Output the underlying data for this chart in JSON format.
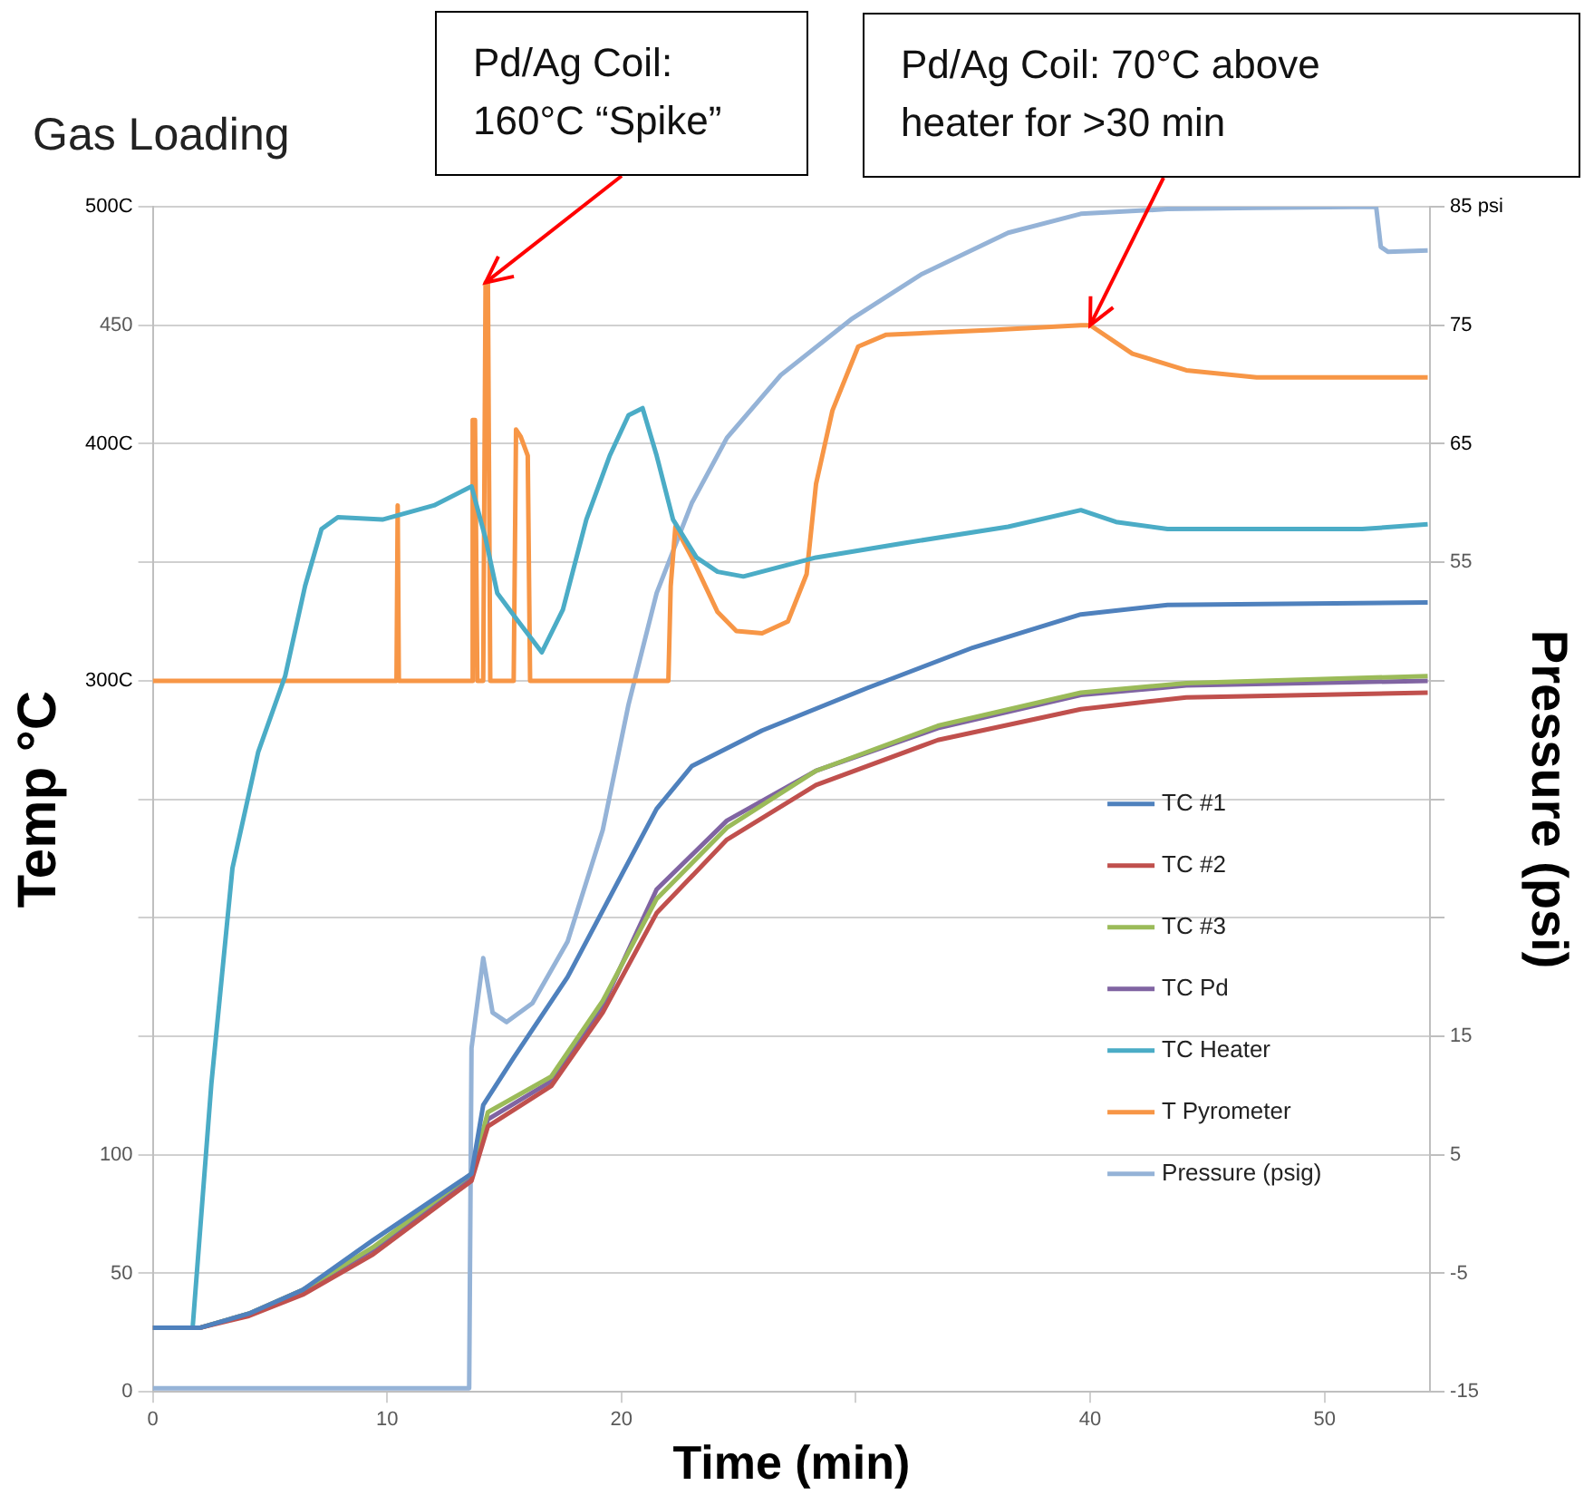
{
  "chart_data": {
    "type": "line",
    "title": "Gas Loading",
    "xlabel": "Time (min)",
    "ylabel": "Temp °C",
    "y2label": "Pressure (psi)",
    "xlim": [
      0,
      54.5
    ],
    "xticks": [
      0,
      10,
      20,
      {
        "value": 30,
        "label": null
      },
      40,
      50
    ],
    "ylim": [
      0,
      500
    ],
    "yticks": [
      0,
      50,
      100,
      {
        "value": 150,
        "label": null
      },
      {
        "value": 200,
        "label": null
      },
      {
        "value": 250,
        "label": null
      },
      {
        "value": 300,
        "label": "300C"
      },
      {
        "value": 350,
        "label": null
      },
      {
        "value": 400,
        "label": "400C"
      },
      450,
      {
        "value": 500,
        "label": "500C"
      }
    ],
    "y2lim": [
      -15,
      85
    ],
    "y2ticks": [
      -15,
      -5,
      5,
      15,
      {
        "value": 25,
        "label": null
      },
      {
        "value": 35,
        "label": null
      },
      {
        "value": 45,
        "label": null
      },
      55,
      {
        "value": 65,
        "label": "65"
      },
      {
        "value": 75,
        "label": "75"
      },
      {
        "value": 85,
        "label": "85 psi"
      }
    ],
    "grid": "y",
    "legend": "right",
    "marker": "none",
    "line_style": "solid",
    "series": [
      {
        "name": "TC #1",
        "color": "#4f81bd",
        "x": [
          0,
          2,
          4.1,
          6.4,
          9.4,
          13.6,
          14.1,
          15.4,
          17.7,
          20,
          21.5,
          23,
          26,
          30.5,
          35,
          39.6,
          43.3,
          54.4
        ],
        "values": [
          27,
          27,
          33,
          43,
          64,
          92,
          121,
          141,
          175,
          218,
          246,
          264,
          279,
          297,
          314,
          328,
          332,
          333
        ]
      },
      {
        "name": "TC #2",
        "color": "#c0504d",
        "x": [
          0,
          2,
          4.1,
          6.4,
          9.4,
          13.6,
          14.3,
          17,
          19.2,
          21.5,
          24.5,
          28.3,
          33.5,
          39.6,
          44.1,
          54.4
        ],
        "values": [
          27,
          27,
          32,
          41,
          58,
          89,
          112,
          129,
          160,
          202,
          233,
          256,
          275,
          288,
          293,
          295
        ]
      },
      {
        "name": "TC #3",
        "color": "#9bbb59",
        "x": [
          0,
          2,
          4.1,
          6.4,
          9.4,
          13.6,
          14.3,
          17,
          19.2,
          21.5,
          24.5,
          28.3,
          33.5,
          39.6,
          44.1,
          54.4
        ],
        "values": [
          27,
          27,
          33,
          43,
          61,
          92,
          118,
          133,
          165,
          208,
          238,
          262,
          281,
          295,
          299,
          302
        ]
      },
      {
        "name": "TC Pd",
        "color": "#8064a2",
        "x": [
          0,
          2,
          4.1,
          6.4,
          9.4,
          13.6,
          14.3,
          17,
          19.2,
          21.5,
          24.5,
          28.3,
          33.5,
          39.6,
          44.1,
          54.4
        ],
        "values": [
          27,
          27,
          33,
          43,
          60,
          91,
          115,
          131,
          163,
          212,
          241,
          262,
          280,
          294,
          298,
          300
        ]
      },
      {
        "name": "TC Heater",
        "color": "#4bacc6",
        "x": [
          0,
          1.7,
          2.5,
          3.4,
          4.5,
          5.65,
          6.5,
          7.2,
          7.9,
          9.8,
          12,
          13.6,
          14.2,
          14.7,
          15.6,
          16.6,
          17.5,
          18.5,
          19.5,
          20.3,
          20.9,
          21.5,
          22.2,
          23.2,
          24.1,
          25.2,
          28.3,
          32,
          36.5,
          39.6,
          41.1,
          43.3,
          47.1,
          51.6,
          54.4
        ],
        "values": [
          27,
          27,
          130,
          221,
          270,
          302,
          340,
          364,
          369,
          368,
          374,
          382,
          360,
          337,
          325,
          312,
          330,
          368,
          395,
          412,
          415,
          395,
          368,
          352,
          346,
          344,
          352,
          358,
          365,
          372,
          367,
          364,
          364,
          364,
          366
        ]
      },
      {
        "name": "T Pyrometer",
        "color": "#f79646",
        "x": [
          0,
          10.4,
          10.45,
          10.5,
          13.6,
          13.65,
          13.75,
          13.85,
          14.1,
          14.2,
          14.3,
          14.4,
          14.5,
          15.4,
          15.5,
          15.7,
          16.0,
          16.1,
          16.2,
          22.0,
          22.1,
          22.3,
          23,
          24.1,
          24.9,
          26,
          27.1,
          27.9,
          28.3,
          29,
          30.1,
          31.3,
          35.8,
          39.6,
          40,
          41.8,
          44.1,
          47.1,
          54.4
        ],
        "values": [
          300,
          300,
          374,
          300,
          300,
          410,
          410,
          300,
          300,
          468,
          468,
          300,
          300,
          300,
          406,
          403,
          395,
          300,
          300,
          300,
          340,
          365,
          352,
          329,
          321,
          320,
          325,
          345,
          383,
          414,
          441,
          446,
          448,
          450,
          450,
          438,
          431,
          428,
          428
        ]
      },
      {
        "name": "Pressure (psig)",
        "color": "#95b3d7",
        "axis": "y2",
        "x": [
          0,
          13.5,
          13.6,
          14.1,
          14.5,
          15.1,
          16.2,
          17.7,
          19.2,
          20.3,
          21.5,
          23,
          24.5,
          26.8,
          29.8,
          32.8,
          36.5,
          39.6,
          43.3,
          47.1,
          52.2,
          52.4,
          52.7,
          54.4
        ],
        "values": [
          -14.7,
          -14.7,
          14,
          21.6,
          17,
          16.2,
          17.8,
          23,
          32.4,
          43,
          52.4,
          60,
          65.5,
          70.8,
          75.5,
          79.3,
          82.8,
          84.4,
          84.8,
          84.9,
          85,
          81.6,
          81.2,
          81.3
        ]
      }
    ],
    "annotations": [
      {
        "text": "Pd/Ag Coil:\n160°C “Spike”",
        "x": 14.2,
        "y": 468
      },
      {
        "text": "Pd/Ag Coil:  70°C above\nheater for >30 min",
        "x": 40,
        "y": 450
      }
    ]
  }
}
